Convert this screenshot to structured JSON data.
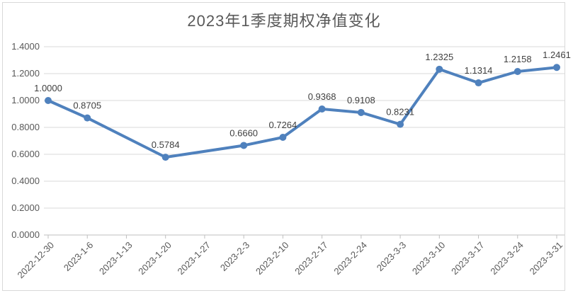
{
  "chart_data": {
    "type": "line",
    "title": "2023年1季度期权净值变化",
    "categories": [
      "2022-12-30",
      "2023-1-6",
      "2023-1-13",
      "2023-1-20",
      "2023-1-27",
      "2023-2-3",
      "2023-2-10",
      "2023-2-17",
      "2023-2-24",
      "2023-3-3",
      "2023-3-10",
      "2023-3-17",
      "2023-3-24",
      "2023-3-31"
    ],
    "values": [
      1.0,
      0.8705,
      null,
      0.5784,
      null,
      0.666,
      0.7264,
      0.9368,
      0.9108,
      0.8231,
      1.2325,
      1.1314,
      1.2158,
      1.2461
    ],
    "data_labels": [
      "1.0000",
      "0.8705",
      null,
      "0.5784",
      null,
      "0.6660",
      "0.7264",
      "0.9368",
      "0.9108",
      "0.8231",
      "1.2325",
      "1.1314",
      "1.2158",
      "1.2461"
    ],
    "y_tick_labels": [
      "0.0000",
      "0.2000",
      "0.4000",
      "0.6000",
      "0.8000",
      "1.0000",
      "1.2000",
      "1.4000"
    ],
    "ylim": [
      0,
      1.4
    ],
    "y_step": 0.2,
    "xlabel": "",
    "ylabel": "",
    "grid": true,
    "legend": "none",
    "colors": {
      "line": "#4F81BD",
      "marker": "#4F81BD",
      "gridline": "#d9d9d9",
      "axis_line": "#bfbfbf",
      "axis_label": "#595959",
      "data_label": "#404040",
      "title": "#595959",
      "chart_border": "#d9d9d9",
      "background": "#ffffff"
    }
  }
}
